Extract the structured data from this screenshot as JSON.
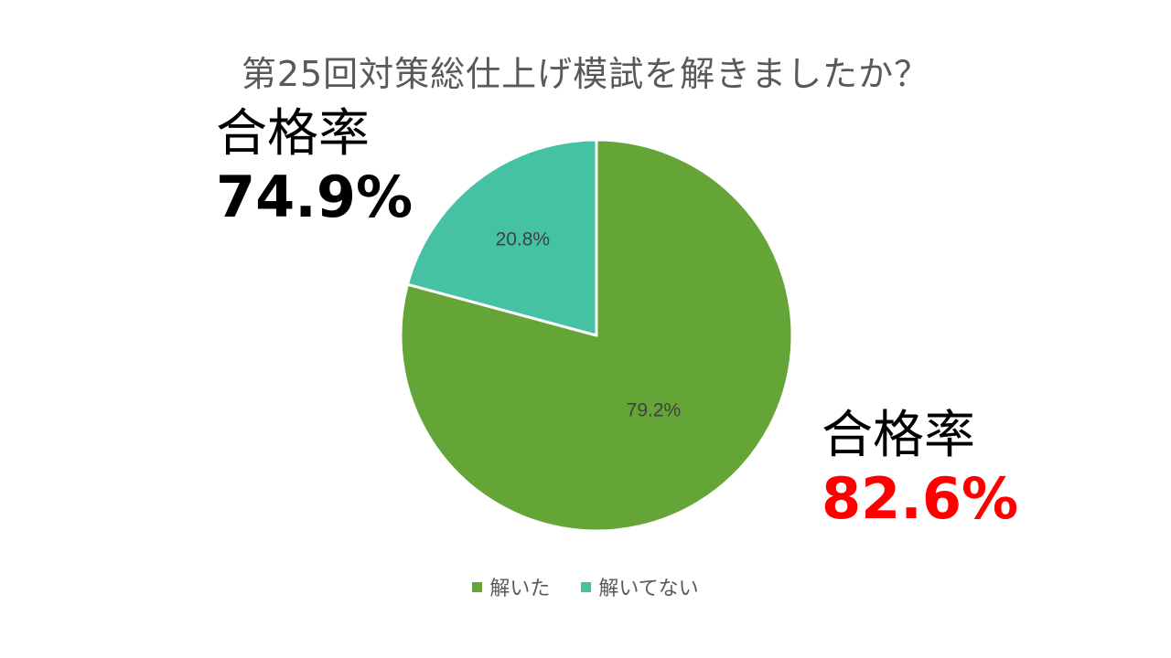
{
  "chart_data": {
    "type": "pie",
    "title": "第25回対策総仕上げ模試を解きましたか？",
    "categories": [
      "解いた",
      "解いてない"
    ],
    "values": [
      79.2,
      20.8
    ],
    "value_labels": [
      "79.2%",
      "20.8%"
    ],
    "colors": [
      "#65a538",
      "#45c1a4"
    ],
    "legend_position": "bottom",
    "start_angle_deg": 0,
    "direction": "clockwise"
  },
  "annotations": {
    "left": {
      "label": "合格率",
      "value": "74.9%",
      "color": "#000000"
    },
    "right": {
      "label": "合格率",
      "value": "82.6%",
      "color": "#ff0000"
    }
  }
}
